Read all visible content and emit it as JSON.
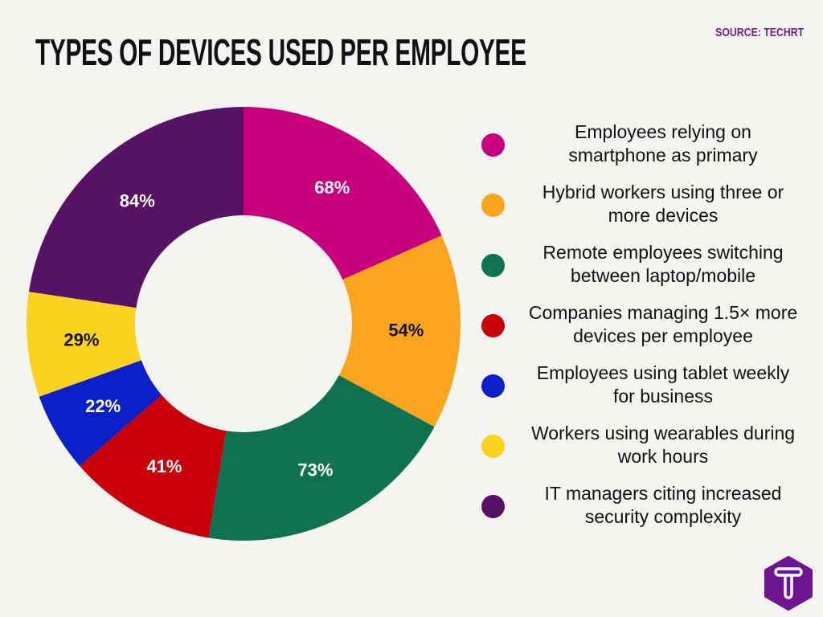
{
  "title": "TYPES OF DEVICES USED PER EMPLOYEE",
  "source": "SOURCE: TECHRT",
  "logo": {
    "letter": "T",
    "color": "#6E1490"
  },
  "chart_data": {
    "type": "donut",
    "title": "TYPES OF DEVICES USED PER EMPLOYEE",
    "start": "top, clockwise",
    "legend_position": "right",
    "series": [
      {
        "name": "Employees relying on smartphone as primary",
        "value": 68,
        "label": "68%",
        "color": "#C8007E",
        "label_color": "#FFFFFF"
      },
      {
        "name": "Hybrid workers using three or more devices",
        "value": 54,
        "label": "54%",
        "color": "#FBA41E",
        "label_color": "#111111"
      },
      {
        "name": "Remote employees switching between laptop/mobile",
        "value": 73,
        "label": "73%",
        "color": "#0E7250",
        "label_color": "#FFFFFF"
      },
      {
        "name": "Companies managing 1.5× more devices per employee",
        "value": 41,
        "label": "41%",
        "color": "#C8000A",
        "label_color": "#FFFFFF"
      },
      {
        "name": "Employees using tablet weekly for business",
        "value": 22,
        "label": "22%",
        "color": "#0A1FC8",
        "label_color": "#FFFFFF"
      },
      {
        "name": "Workers using wearables during work hours",
        "value": 29,
        "label": "29%",
        "color": "#FBD21E",
        "label_color": "#111111"
      },
      {
        "name": "IT managers citing increased security complexity",
        "value": 84,
        "label": "84%",
        "color": "#561366",
        "label_color": "#FFFFFF"
      }
    ]
  },
  "legend": [
    {
      "line1": "Employees relying on",
      "line2": "smartphone as primary"
    },
    {
      "line1": "Hybrid workers using three or",
      "line2": "more devices"
    },
    {
      "line1": "Remote employees switching",
      "line2": "between laptop/mobile"
    },
    {
      "line1": "Companies managing 1.5× more",
      "line2": "devices per employee"
    },
    {
      "line1": "Employees using tablet weekly",
      "line2": "for business"
    },
    {
      "line1": "Workers using wearables during",
      "line2": "work hours"
    },
    {
      "line1": "IT managers citing increased",
      "line2": "security complexity"
    }
  ]
}
